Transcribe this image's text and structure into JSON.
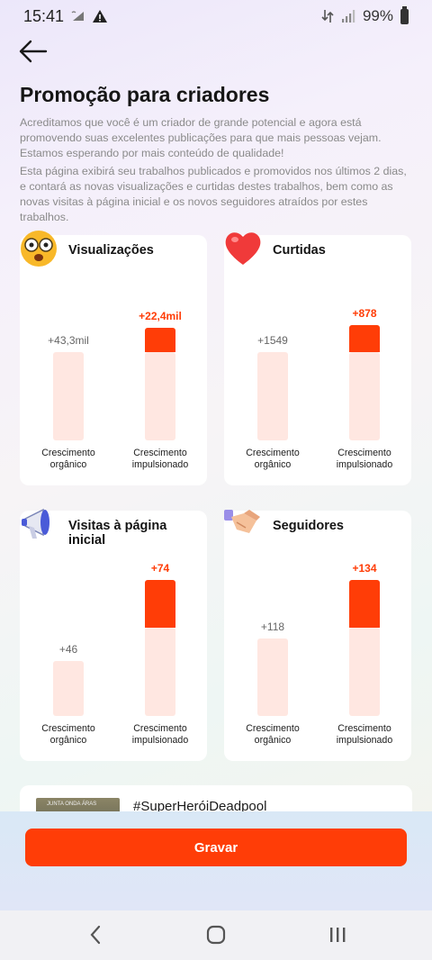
{
  "status": {
    "time": "15:41",
    "battery": "99%",
    "left_icons": [
      "wifi-calling-icon",
      "warning-icon"
    ],
    "right_icons": [
      "data-transfer-icon",
      "signal-icon",
      "battery-icon"
    ]
  },
  "header": {
    "back_icon": "arrow-left-icon",
    "title": "Promoção para criadores"
  },
  "intro": {
    "paragraph_1": "Acreditamos que você é um criador de grande potencial e agora está promovendo suas excelentes publicações para que mais pessoas vejam. Estamos esperando por mais conteúdo de qualidade!",
    "paragraph_2": "Esta página exibirá seu trabalhos publicados e promovidos nos últimos 2 dias, e contará as novas visualizações e curtidas destes trabalhos, bem como as novas visitas à página inicial e os novos seguidores atraídos por estes trabalhos."
  },
  "captions": {
    "organic": "Crescimento orgânico",
    "boosted": "Crescimento impulsionado"
  },
  "colors": {
    "accent": "#ff3d07",
    "bar_light": "#ffe7e1"
  },
  "metrics": [
    {
      "title": "Visualizações",
      "icon": "surprised-emoji-icon",
      "organic_label": "+43,3mil",
      "boosted_label": "+22,4mil",
      "organic_value": 43300,
      "boosted_value": 22400
    },
    {
      "title": "Curtidas",
      "icon": "heart-icon",
      "organic_label": "+1549",
      "boosted_label": "+878",
      "organic_value": 1549,
      "boosted_value": 878
    },
    {
      "title": "Visitas à página inicial",
      "icon": "megaphone-icon",
      "organic_label": "+46",
      "boosted_label": "+74",
      "organic_value": 46,
      "boosted_value": 74
    },
    {
      "title": "Seguidores",
      "icon": "handshake-icon",
      "organic_label": "+118",
      "boosted_label": "+134",
      "organic_value": 118,
      "boosted_value": 134
    }
  ],
  "video": {
    "title": "#SuperHeróiDeadpool",
    "thumb_text": "JUNTA ONDA ÁRAS"
  },
  "footer": {
    "record_label": "Gravar"
  },
  "nav": {
    "items": [
      "back-nav-icon",
      "home-nav-icon",
      "recents-nav-icon"
    ]
  }
}
